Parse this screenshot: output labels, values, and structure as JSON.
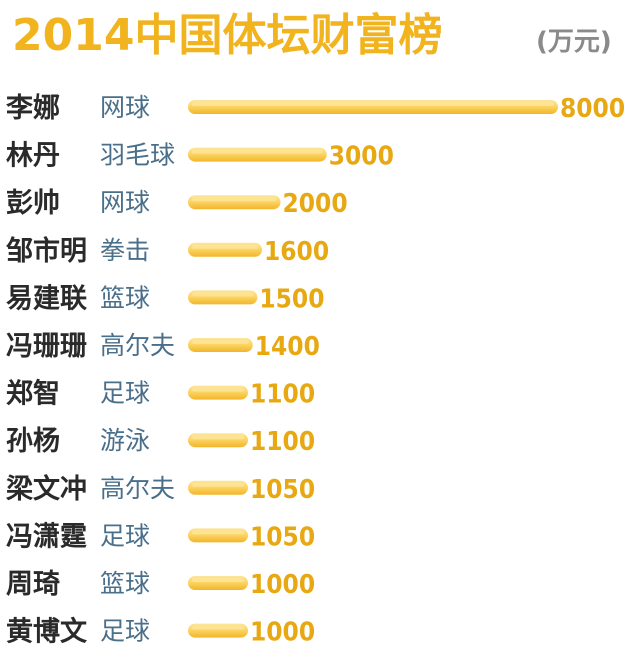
{
  "chart_data": {
    "type": "bar",
    "orientation": "horizontal",
    "title": "2014中国体坛财富榜",
    "unit": "(万元)",
    "xlim": [
      0,
      8000
    ],
    "grid": false,
    "legend": "none",
    "bar_color": "#f7c443",
    "bar_highlight": "#fde59a",
    "value_color": "#e7a812",
    "rows": [
      {
        "name": "李娜",
        "sport": "网球",
        "value": 8000
      },
      {
        "name": "林丹",
        "sport": "羽毛球",
        "value": 3000
      },
      {
        "name": "彭帅",
        "sport": "网球",
        "value": 2000
      },
      {
        "name": "邹市明",
        "sport": "拳击",
        "value": 1600
      },
      {
        "name": "易建联",
        "sport": "篮球",
        "value": 1500
      },
      {
        "name": "冯珊珊",
        "sport": "高尔夫",
        "value": 1400
      },
      {
        "name": "郑智",
        "sport": "足球",
        "value": 1100
      },
      {
        "name": "孙杨",
        "sport": "游泳",
        "value": 1100
      },
      {
        "name": "梁文冲",
        "sport": "高尔夫",
        "value": 1050
      },
      {
        "name": "冯潇霆",
        "sport": "足球",
        "value": 1050
      },
      {
        "name": "周琦",
        "sport": "篮球",
        "value": 1000
      },
      {
        "name": "黄博文",
        "sport": "足球",
        "value": 1000
      }
    ]
  }
}
